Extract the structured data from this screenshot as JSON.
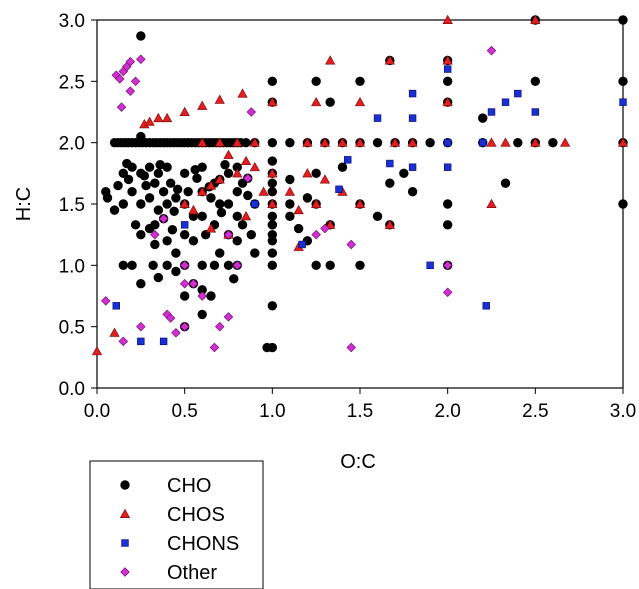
{
  "chart_data": {
    "type": "scatter",
    "xlabel": "O:C",
    "ylabel": "H:C",
    "xlim": [
      0,
      3
    ],
    "ylim": [
      0,
      3
    ],
    "xticks": [
      "0.0",
      "0.5",
      "1.0",
      "1.5",
      "2.0",
      "2.5",
      "3.0"
    ],
    "yticks": [
      "0.0",
      "0.5",
      "1.0",
      "1.5",
      "2.0",
      "2.5",
      "3.0"
    ],
    "grid": false,
    "legend_position": "bottom-left",
    "series": [
      {
        "name": "CHO",
        "marker": "circle",
        "color": "#000000",
        "points": [
          [
            0.1,
            2.0
          ],
          [
            0.12,
            2.0
          ],
          [
            0.14,
            2.0
          ],
          [
            0.16,
            2.0
          ],
          [
            0.18,
            2.0
          ],
          [
            0.2,
            2.0
          ],
          [
            0.22,
            2.0
          ],
          [
            0.24,
            2.0
          ],
          [
            0.26,
            2.0
          ],
          [
            0.28,
            2.0
          ],
          [
            0.3,
            2.0
          ],
          [
            0.32,
            2.0
          ],
          [
            0.34,
            2.0
          ],
          [
            0.36,
            2.0
          ],
          [
            0.38,
            2.0
          ],
          [
            0.4,
            2.0
          ],
          [
            0.42,
            2.0
          ],
          [
            0.44,
            2.0
          ],
          [
            0.46,
            2.0
          ],
          [
            0.48,
            2.0
          ],
          [
            0.5,
            2.0
          ],
          [
            0.52,
            2.0
          ],
          [
            0.54,
            2.0
          ],
          [
            0.56,
            2.0
          ],
          [
            0.58,
            2.0
          ],
          [
            0.6,
            2.0
          ],
          [
            0.62,
            2.0
          ],
          [
            0.64,
            2.0
          ],
          [
            0.66,
            2.0
          ],
          [
            0.68,
            2.0
          ],
          [
            0.7,
            2.0
          ],
          [
            0.72,
            2.0
          ],
          [
            0.74,
            2.0
          ],
          [
            0.76,
            2.0
          ],
          [
            0.78,
            2.0
          ],
          [
            0.8,
            2.0
          ],
          [
            0.82,
            2.0
          ],
          [
            0.85,
            2.0
          ],
          [
            0.9,
            2.0
          ],
          [
            1.0,
            2.0
          ],
          [
            1.1,
            2.0
          ],
          [
            1.2,
            2.0
          ],
          [
            1.3,
            2.0
          ],
          [
            1.4,
            2.0
          ],
          [
            1.5,
            2.0
          ],
          [
            1.6,
            2.0
          ],
          [
            1.7,
            2.0
          ],
          [
            1.8,
            2.0
          ],
          [
            1.9,
            2.0
          ],
          [
            2.0,
            2.0
          ],
          [
            2.2,
            2.0
          ],
          [
            2.4,
            2.0
          ],
          [
            2.5,
            2.0
          ],
          [
            2.6,
            2.0
          ],
          [
            3.0,
            2.0
          ],
          [
            0.25,
            2.87
          ],
          [
            0.25,
            2.05
          ],
          [
            1.0,
            2.5
          ],
          [
            1.25,
            2.5
          ],
          [
            1.5,
            2.5
          ],
          [
            2.0,
            2.5
          ],
          [
            2.5,
            2.5
          ],
          [
            3.0,
            2.5
          ],
          [
            2.5,
            3.0
          ],
          [
            3.0,
            3.0
          ],
          [
            1.67,
            2.67
          ],
          [
            2.0,
            2.67
          ],
          [
            2.0,
            2.33
          ],
          [
            2.2,
            2.2
          ],
          [
            1.33,
            2.33
          ],
          [
            1.0,
            2.33
          ],
          [
            1.0,
            1.85
          ],
          [
            1.0,
            1.75
          ],
          [
            1.0,
            1.67
          ],
          [
            1.0,
            1.6
          ],
          [
            1.0,
            1.5
          ],
          [
            1.0,
            1.4
          ],
          [
            1.0,
            1.33
          ],
          [
            1.0,
            1.25
          ],
          [
            1.0,
            1.2
          ],
          [
            1.0,
            1.1
          ],
          [
            1.0,
            1.0
          ],
          [
            0.97,
            0.33
          ],
          [
            1.0,
            0.33
          ],
          [
            1.0,
            0.67
          ],
          [
            1.1,
            1.7
          ],
          [
            1.1,
            1.5
          ],
          [
            1.1,
            1.4
          ],
          [
            1.15,
            1.3
          ],
          [
            1.2,
            1.55
          ],
          [
            1.2,
            1.2
          ],
          [
            1.25,
            1.75
          ],
          [
            1.25,
            1.5
          ],
          [
            1.25,
            1.0
          ],
          [
            1.33,
            1.33
          ],
          [
            1.33,
            1.0
          ],
          [
            1.4,
            1.8
          ],
          [
            1.5,
            1.5
          ],
          [
            1.5,
            1.0
          ],
          [
            1.6,
            1.4
          ],
          [
            1.67,
            1.67
          ],
          [
            1.67,
            1.33
          ],
          [
            1.75,
            1.75
          ],
          [
            1.8,
            1.6
          ],
          [
            2.0,
            1.5
          ],
          [
            2.0,
            1.33
          ],
          [
            2.33,
            1.67
          ],
          [
            3.0,
            1.5
          ],
          [
            2.0,
            1.0
          ],
          [
            1.0,
            1.33
          ],
          [
            0.05,
            1.6
          ],
          [
            0.06,
            1.55
          ],
          [
            0.1,
            1.45
          ],
          [
            0.12,
            1.65
          ],
          [
            0.15,
            1.75
          ],
          [
            0.15,
            1.5
          ],
          [
            0.18,
            1.7
          ],
          [
            0.2,
            1.8
          ],
          [
            0.2,
            1.6
          ],
          [
            0.22,
            1.33
          ],
          [
            0.25,
            1.75
          ],
          [
            0.25,
            1.5
          ],
          [
            0.25,
            1.25
          ],
          [
            0.28,
            1.65
          ],
          [
            0.3,
            1.8
          ],
          [
            0.3,
            1.55
          ],
          [
            0.3,
            1.3
          ],
          [
            0.32,
            1.0
          ],
          [
            0.33,
            1.67
          ],
          [
            0.33,
            1.33
          ],
          [
            0.35,
            1.75
          ],
          [
            0.35,
            1.45
          ],
          [
            0.38,
            1.6
          ],
          [
            0.4,
            1.8
          ],
          [
            0.4,
            1.5
          ],
          [
            0.4,
            1.2
          ],
          [
            0.4,
            1.0
          ],
          [
            0.42,
            1.67
          ],
          [
            0.43,
            1.29
          ],
          [
            0.45,
            1.55
          ],
          [
            0.45,
            1.1
          ],
          [
            0.5,
            1.75
          ],
          [
            0.5,
            1.5
          ],
          [
            0.5,
            1.25
          ],
          [
            0.5,
            1.0
          ],
          [
            0.5,
            0.75
          ],
          [
            0.52,
            1.6
          ],
          [
            0.55,
            1.4
          ],
          [
            0.55,
            1.2
          ],
          [
            0.57,
            1.71
          ],
          [
            0.6,
            1.8
          ],
          [
            0.6,
            1.6
          ],
          [
            0.6,
            1.4
          ],
          [
            0.6,
            1.0
          ],
          [
            0.6,
            0.8
          ],
          [
            0.62,
            1.25
          ],
          [
            0.65,
            1.55
          ],
          [
            0.67,
            1.67
          ],
          [
            0.67,
            1.33
          ],
          [
            0.67,
            1.0
          ],
          [
            0.7,
            1.7
          ],
          [
            0.7,
            1.5
          ],
          [
            0.7,
            1.1
          ],
          [
            0.71,
            1.43
          ],
          [
            0.75,
            1.75
          ],
          [
            0.75,
            1.5
          ],
          [
            0.75,
            1.25
          ],
          [
            0.75,
            1.0
          ],
          [
            0.78,
            0.89
          ],
          [
            0.8,
            1.8
          ],
          [
            0.8,
            1.6
          ],
          [
            0.8,
            1.4
          ],
          [
            0.8,
            1.2
          ],
          [
            0.8,
            1.0
          ],
          [
            0.83,
            1.67
          ],
          [
            0.83,
            1.33
          ],
          [
            0.86,
            1.57
          ],
          [
            0.88,
            1.25
          ],
          [
            0.9,
            1.5
          ],
          [
            0.9,
            1.1
          ],
          [
            0.15,
            1.0
          ],
          [
            0.2,
            1.0
          ],
          [
            0.25,
            0.85
          ],
          [
            0.35,
            0.9
          ],
          [
            0.45,
            0.95
          ],
          [
            0.55,
            0.85
          ],
          [
            0.65,
            0.75
          ],
          [
            0.33,
            1.17
          ],
          [
            0.38,
            1.38
          ],
          [
            0.44,
            1.44
          ],
          [
            0.17,
            1.83
          ],
          [
            0.27,
            1.73
          ],
          [
            0.36,
            1.82
          ],
          [
            0.46,
            1.62
          ],
          [
            0.56,
            1.78
          ],
          [
            0.64,
            1.64
          ],
          [
            0.73,
            1.82
          ],
          [
            0.86,
            1.71
          ],
          [
            0.5,
            0.5
          ],
          [
            0.6,
            0.6
          ]
        ]
      },
      {
        "name": "CHOS",
        "marker": "triangle",
        "color": "#e02020",
        "points": [
          [
            0.0,
            0.3
          ],
          [
            0.1,
            0.45
          ],
          [
            0.27,
            2.15
          ],
          [
            0.3,
            2.17
          ],
          [
            0.35,
            2.2
          ],
          [
            0.4,
            2.2
          ],
          [
            0.5,
            2.25
          ],
          [
            0.6,
            2.3
          ],
          [
            0.7,
            2.35
          ],
          [
            0.83,
            2.4
          ],
          [
            1.0,
            2.33
          ],
          [
            1.33,
            2.67
          ],
          [
            1.67,
            2.67
          ],
          [
            2.0,
            3.0
          ],
          [
            2.0,
            2.67
          ],
          [
            2.5,
            3.0
          ],
          [
            1.25,
            2.33
          ],
          [
            1.5,
            2.33
          ],
          [
            2.0,
            2.33
          ],
          [
            0.6,
            2.0
          ],
          [
            0.7,
            2.0
          ],
          [
            0.8,
            2.0
          ],
          [
            0.9,
            2.0
          ],
          [
            1.2,
            2.0
          ],
          [
            1.3,
            2.0
          ],
          [
            1.4,
            2.0
          ],
          [
            1.5,
            2.0
          ],
          [
            1.7,
            2.0
          ],
          [
            1.8,
            2.0
          ],
          [
            2.25,
            2.0
          ],
          [
            2.33,
            2.0
          ],
          [
            2.5,
            2.0
          ],
          [
            2.67,
            2.0
          ],
          [
            3.0,
            2.0
          ],
          [
            0.5,
            1.5
          ],
          [
            0.55,
            1.45
          ],
          [
            0.6,
            1.6
          ],
          [
            0.65,
            1.3
          ],
          [
            0.7,
            1.7
          ],
          [
            0.75,
            1.9
          ],
          [
            0.8,
            1.75
          ],
          [
            0.85,
            1.85
          ],
          [
            0.9,
            1.8
          ],
          [
            0.95,
            1.6
          ],
          [
            1.0,
            1.75
          ],
          [
            1.0,
            1.5
          ],
          [
            1.1,
            1.6
          ],
          [
            1.15,
            1.45
          ],
          [
            1.2,
            1.75
          ],
          [
            1.25,
            1.5
          ],
          [
            1.3,
            1.7
          ],
          [
            1.33,
            1.33
          ],
          [
            1.4,
            1.6
          ],
          [
            1.5,
            1.5
          ],
          [
            1.67,
            1.33
          ],
          [
            2.25,
            1.5
          ],
          [
            1.15,
            1.15
          ],
          [
            0.75,
            1.25
          ],
          [
            0.85,
            1.4
          ],
          [
            0.65,
            1.65
          ]
        ]
      },
      {
        "name": "CHONS",
        "marker": "square",
        "color": "#1a2fd6",
        "points": [
          [
            0.11,
            0.67
          ],
          [
            0.25,
            0.38
          ],
          [
            0.38,
            0.38
          ],
          [
            0.5,
            1.33
          ],
          [
            0.9,
            1.5
          ],
          [
            1.17,
            1.17
          ],
          [
            1.38,
            1.62
          ],
          [
            1.43,
            1.86
          ],
          [
            1.6,
            2.2
          ],
          [
            1.67,
            1.83
          ],
          [
            1.8,
            2.4
          ],
          [
            1.8,
            2.2
          ],
          [
            1.8,
            1.8
          ],
          [
            1.9,
            1.0
          ],
          [
            2.0,
            2.6
          ],
          [
            2.0,
            2.0
          ],
          [
            2.0,
            1.8
          ],
          [
            2.2,
            2.0
          ],
          [
            2.25,
            2.25
          ],
          [
            2.22,
            0.67
          ],
          [
            2.33,
            2.33
          ],
          [
            2.4,
            2.4
          ],
          [
            2.5,
            2.25
          ],
          [
            3.0,
            2.33
          ]
        ]
      },
      {
        "name": "Other",
        "marker": "diamond",
        "color": "#d030d0",
        "points": [
          [
            0.11,
            2.55
          ],
          [
            0.13,
            2.52
          ],
          [
            0.15,
            2.58
          ],
          [
            0.17,
            2.62
          ],
          [
            0.19,
            2.66
          ],
          [
            0.22,
            2.5
          ],
          [
            0.25,
            2.68
          ],
          [
            0.14,
            2.29
          ],
          [
            0.19,
            2.42
          ],
          [
            0.05,
            0.71
          ],
          [
            0.15,
            0.38
          ],
          [
            0.25,
            0.5
          ],
          [
            0.33,
            1.25
          ],
          [
            0.4,
            0.6
          ],
          [
            0.42,
            0.57
          ],
          [
            0.45,
            0.45
          ],
          [
            0.5,
            0.85
          ],
          [
            0.5,
            0.5
          ],
          [
            0.55,
            0.85
          ],
          [
            0.6,
            0.75
          ],
          [
            0.67,
            0.33
          ],
          [
            0.7,
            0.5
          ],
          [
            0.75,
            0.58
          ],
          [
            0.8,
            1.0
          ],
          [
            0.86,
            1.71
          ],
          [
            1.25,
            1.25
          ],
          [
            1.3,
            1.3
          ],
          [
            1.45,
            1.17
          ],
          [
            1.45,
            0.33
          ],
          [
            2.0,
            1.0
          ],
          [
            2.0,
            0.78
          ],
          [
            2.25,
            2.75
          ],
          [
            0.88,
            2.25
          ],
          [
            0.38,
            1.38
          ],
          [
            0.5,
            1.0
          ],
          [
            0.75,
            1.25
          ]
        ]
      }
    ]
  }
}
